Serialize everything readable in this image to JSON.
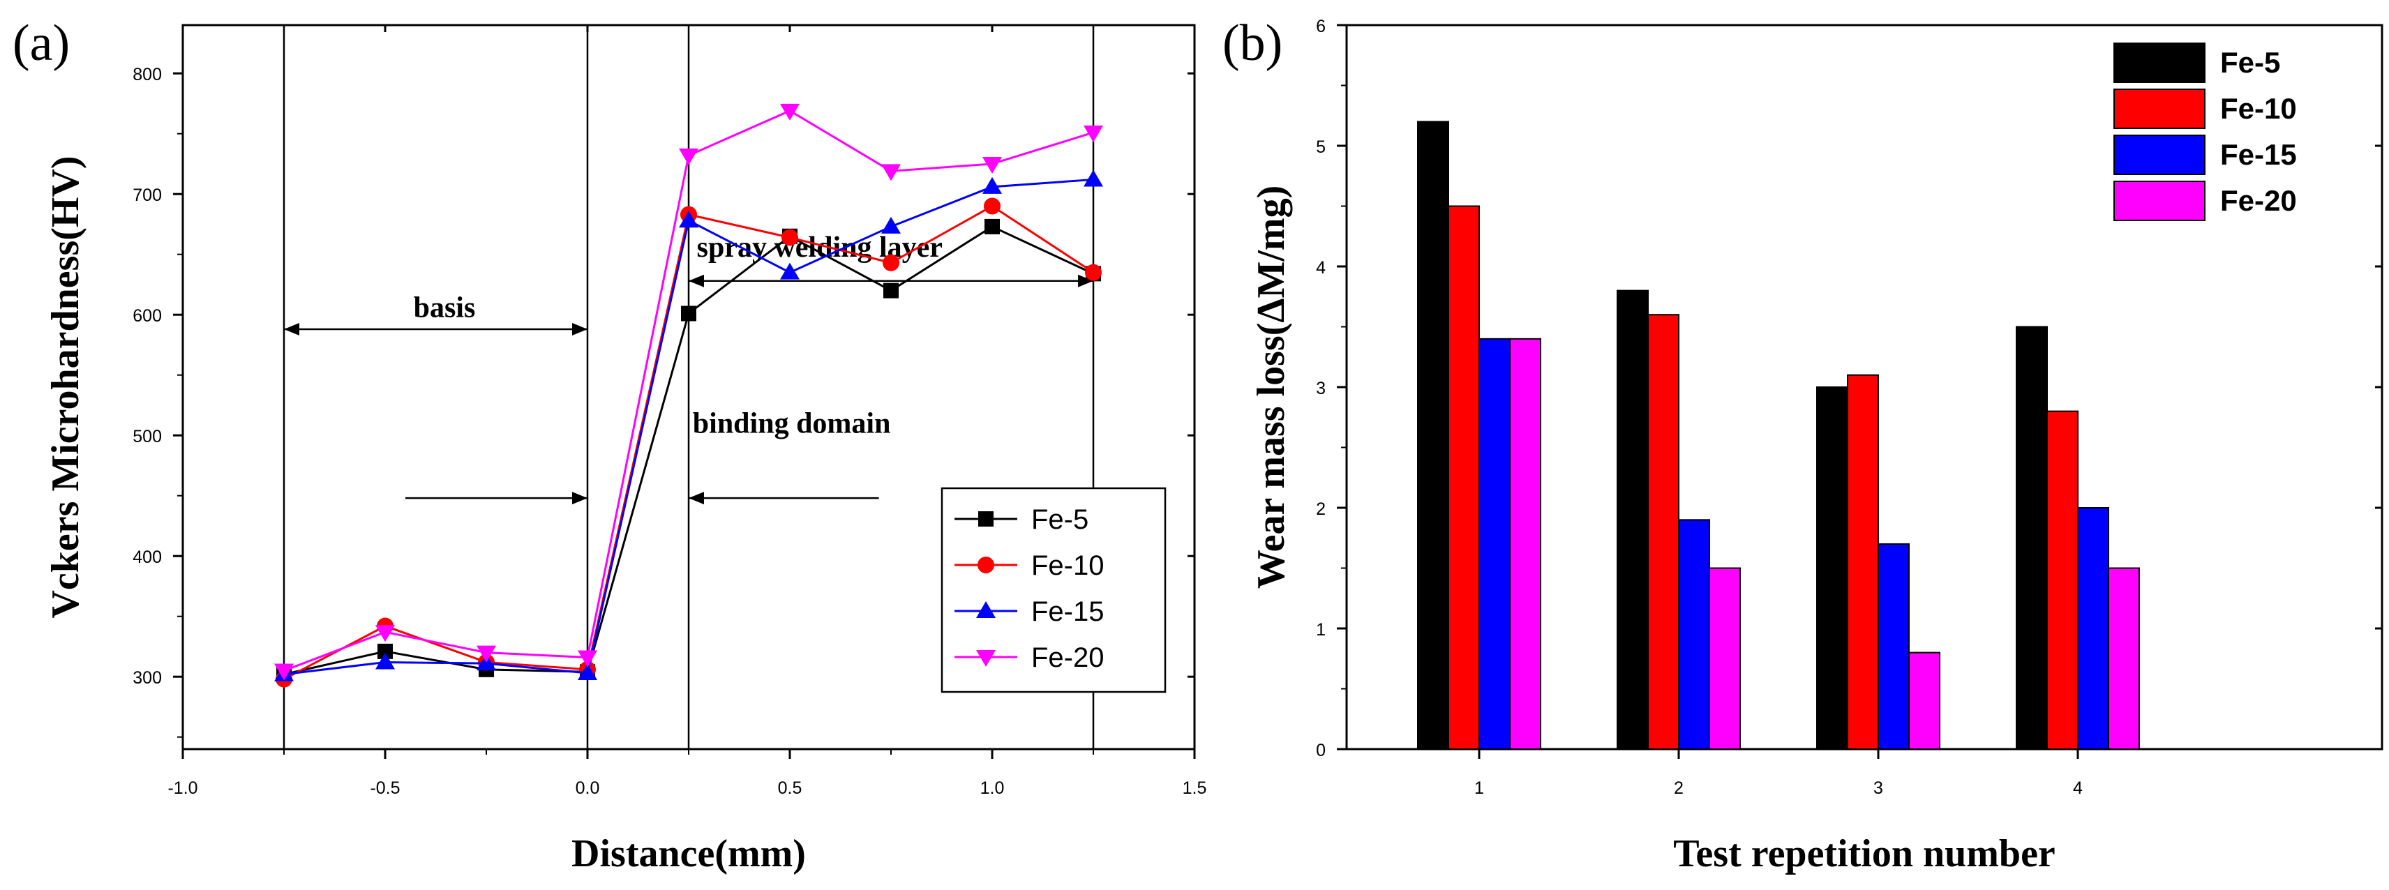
{
  "chart_data": [
    {
      "panel": "(a)",
      "type": "line",
      "xlabel": "Distance(mm)",
      "ylabel": "Vckers Microhardness(HV)",
      "xlim": [
        -1.0,
        1.5
      ],
      "ylim": [
        240,
        840
      ],
      "xticks": [
        -1.0,
        -0.5,
        0.0,
        0.5,
        1.0,
        1.5
      ],
      "xtick_labels": [
        "-1.0",
        "-0.5",
        "0.0",
        "0.5",
        "1.0",
        "1.5"
      ],
      "yticks": [
        300,
        400,
        500,
        600,
        700,
        800
      ],
      "ytick_labels": [
        "300",
        "400",
        "500",
        "600",
        "700",
        "800"
      ],
      "x": [
        -0.75,
        -0.5,
        -0.25,
        0.0,
        0.25,
        0.5,
        0.75,
        1.0,
        1.25
      ],
      "series": [
        {
          "name": "Fe-5",
          "color": "#000000",
          "marker": "square",
          "values": [
            302,
            321,
            306,
            304,
            601,
            665,
            620,
            673,
            634
          ]
        },
        {
          "name": "Fe-10",
          "color": "#ff0000",
          "marker": "circle",
          "values": [
            298,
            342,
            312,
            306,
            683,
            664,
            643,
            690,
            635
          ]
        },
        {
          "name": "Fe-15",
          "color": "#0000ff",
          "marker": "triangle-up",
          "values": [
            302,
            312,
            311,
            303,
            678,
            635,
            673,
            706,
            712
          ]
        },
        {
          "name": "Fe-20",
          "color": "#ff00ff",
          "marker": "triangle-down",
          "values": [
            305,
            337,
            320,
            316,
            732,
            769,
            719,
            725,
            751
          ]
        }
      ],
      "vlines": [
        -0.75,
        0.0,
        0.25,
        1.25
      ],
      "annotations": [
        {
          "text": "basis",
          "x": -0.43,
          "y": 598
        },
        {
          "text": "spray welding layer",
          "x": 0.27,
          "y": 648
        },
        {
          "text": "binding domain",
          "x": 0.26,
          "y": 502
        }
      ],
      "arrows": [
        {
          "type": "double",
          "x1": -0.75,
          "x2": 0.0,
          "y": 588
        },
        {
          "type": "double",
          "x1": 0.25,
          "x2": 1.25,
          "y": 628
        },
        {
          "type": "single",
          "from": -0.45,
          "to": 0.0,
          "y": 448
        },
        {
          "type": "single",
          "from": 0.72,
          "to": 0.25,
          "y": 448
        }
      ],
      "legend": "bottom-right"
    },
    {
      "panel": "(b)",
      "type": "bar",
      "xlabel": "Test repetition number",
      "ylabel": "Wear mass loss(ΔM/mg)",
      "categories": [
        "1",
        "2",
        "3",
        "4"
      ],
      "ylim": [
        0,
        6
      ],
      "yticks": [
        0,
        1,
        2,
        3,
        4,
        5,
        6
      ],
      "ytick_labels": [
        "0",
        "1",
        "2",
        "3",
        "4",
        "5",
        "6"
      ],
      "series": [
        {
          "name": "Fe-5",
          "color": "#000000",
          "values": [
            5.2,
            3.8,
            3.0,
            3.5
          ]
        },
        {
          "name": "Fe-10",
          "color": "#ff0000",
          "values": [
            4.5,
            3.6,
            3.1,
            2.8
          ]
        },
        {
          "name": "Fe-15",
          "color": "#0000ff",
          "values": [
            3.4,
            1.9,
            1.7,
            2.0
          ]
        },
        {
          "name": "Fe-20",
          "color": "#ff00ff",
          "values": [
            3.4,
            1.5,
            0.8,
            1.5
          ]
        }
      ],
      "legend": "top-right"
    }
  ]
}
